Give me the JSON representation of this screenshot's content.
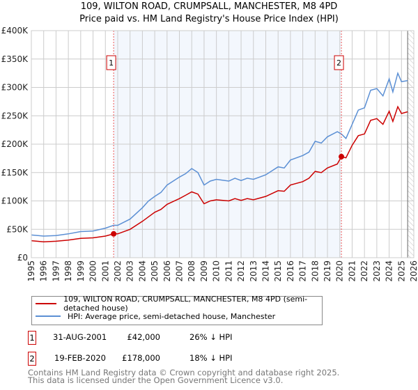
{
  "title": "109, WILTON ROAD, CRUMPSALL, MANCHESTER, M8 4PD",
  "subtitle": "Price paid vs. HM Land Registry's House Price Index (HPI)",
  "chart_data": {
    "type": "line",
    "xlim": [
      1995,
      2026
    ],
    "ylim": [
      0,
      400000
    ],
    "y_ticks": [
      {
        "v": 0,
        "label": "£0"
      },
      {
        "v": 50000,
        "label": "£50K"
      },
      {
        "v": 100000,
        "label": "£100K"
      },
      {
        "v": 150000,
        "label": "£150K"
      },
      {
        "v": 200000,
        "label": "£200K"
      },
      {
        "v": 250000,
        "label": "£250K"
      },
      {
        "v": 300000,
        "label": "£300K"
      },
      {
        "v": 350000,
        "label": "£350K"
      },
      {
        "v": 400000,
        "label": "£400K"
      }
    ],
    "x_ticks": [
      "1995",
      "1996",
      "1997",
      "1998",
      "1999",
      "2000",
      "2001",
      "2002",
      "2003",
      "2004",
      "2005",
      "2006",
      "2007",
      "2008",
      "2009",
      "2010",
      "2011",
      "2012",
      "2013",
      "2014",
      "2015",
      "2016",
      "2017",
      "2018",
      "2019",
      "2020",
      "2021",
      "2022",
      "2023",
      "2024",
      "2025",
      "2026"
    ],
    "grid": true,
    "shaded_range": [
      2001.67,
      2020.13
    ],
    "hatched_from": 2025.5,
    "series": [
      {
        "name": "109, WILTON ROAD, CRUMPSALL, MANCHESTER, M8 4PD (semi-detached house)",
        "color": "#cc0000",
        "x": [
          1995,
          1996,
          1997,
          1998,
          1999,
          2000,
          2001,
          2001.67,
          2002,
          2003,
          2004,
          2004.5,
          2005,
          2005.5,
          2006,
          2007,
          2007.5,
          2008,
          2008.5,
          2009,
          2009.5,
          2010,
          2011,
          2011.5,
          2012,
          2012.5,
          2013,
          2014,
          2015,
          2015.5,
          2016,
          2017,
          2017.5,
          2018,
          2018.5,
          2019,
          2019.8,
          2020.13,
          2020.5,
          2021,
          2021.5,
          2022,
          2022.5,
          2023,
          2023.5,
          2024,
          2024.3,
          2024.7,
          2025,
          2025.5
        ],
        "y": [
          30000,
          28000,
          29000,
          31000,
          34000,
          35000,
          38000,
          42000,
          42000,
          50000,
          64000,
          72000,
          80000,
          85000,
          94000,
          104000,
          110000,
          116000,
          112000,
          95000,
          100000,
          102000,
          100000,
          104000,
          101000,
          104000,
          102000,
          108000,
          118000,
          117000,
          128000,
          134000,
          140000,
          152000,
          150000,
          158000,
          165000,
          178000,
          176000,
          198000,
          215000,
          218000,
          242000,
          245000,
          235000,
          258000,
          240000,
          266000,
          254000,
          257000
        ]
      },
      {
        "name": "HPI: Average price, semi-detached house, Manchester",
        "color": "#5b8fd4",
        "x": [
          1995,
          1996,
          1997,
          1998,
          1999,
          2000,
          2001,
          2001.67,
          2002,
          2003,
          2004,
          2004.5,
          2005,
          2005.5,
          2006,
          2007,
          2007.5,
          2008,
          2008.5,
          2009,
          2009.5,
          2010,
          2011,
          2011.5,
          2012,
          2012.5,
          2013,
          2014,
          2015,
          2015.5,
          2016,
          2017,
          2017.5,
          2018,
          2018.5,
          2019,
          2019.8,
          2020.13,
          2020.5,
          2021,
          2021.5,
          2022,
          2022.5,
          2023,
          2023.5,
          2024,
          2024.3,
          2024.7,
          2025,
          2025.5
        ],
        "y": [
          40000,
          38000,
          39000,
          42000,
          46000,
          47000,
          52000,
          57000,
          57000,
          68000,
          88000,
          100000,
          108000,
          115000,
          128000,
          142000,
          148000,
          157000,
          150000,
          128000,
          135000,
          138000,
          135000,
          140000,
          136000,
          140000,
          138000,
          146000,
          160000,
          158000,
          172000,
          180000,
          186000,
          205000,
          202000,
          213000,
          222000,
          218000,
          210000,
          235000,
          260000,
          264000,
          295000,
          298000,
          285000,
          315000,
          292000,
          325000,
          310000,
          312000
        ]
      }
    ],
    "annotations": [
      {
        "label": "1",
        "x": 2001.67,
        "y": 42000
      },
      {
        "label": "2",
        "x": 2020.13,
        "y": 178000
      }
    ]
  },
  "legend": [
    {
      "label": "109, WILTON ROAD, CRUMPSALL, MANCHESTER, M8 4PD (semi-detached house)",
      "color": "#cc0000"
    },
    {
      "label": "HPI: Average price, semi-detached house, Manchester",
      "color": "#5b8fd4"
    }
  ],
  "transactions": [
    {
      "num": "1",
      "date": "31-AUG-2001",
      "price": "£42,000",
      "hpi": "26% ↓ HPI"
    },
    {
      "num": "2",
      "date": "19-FEB-2020",
      "price": "£178,000",
      "hpi": "18% ↓ HPI"
    }
  ],
  "footer": [
    "Contains HM Land Registry data © Crown copyright and database right 2025.",
    "This data is licensed under the Open Government Licence v3.0."
  ]
}
